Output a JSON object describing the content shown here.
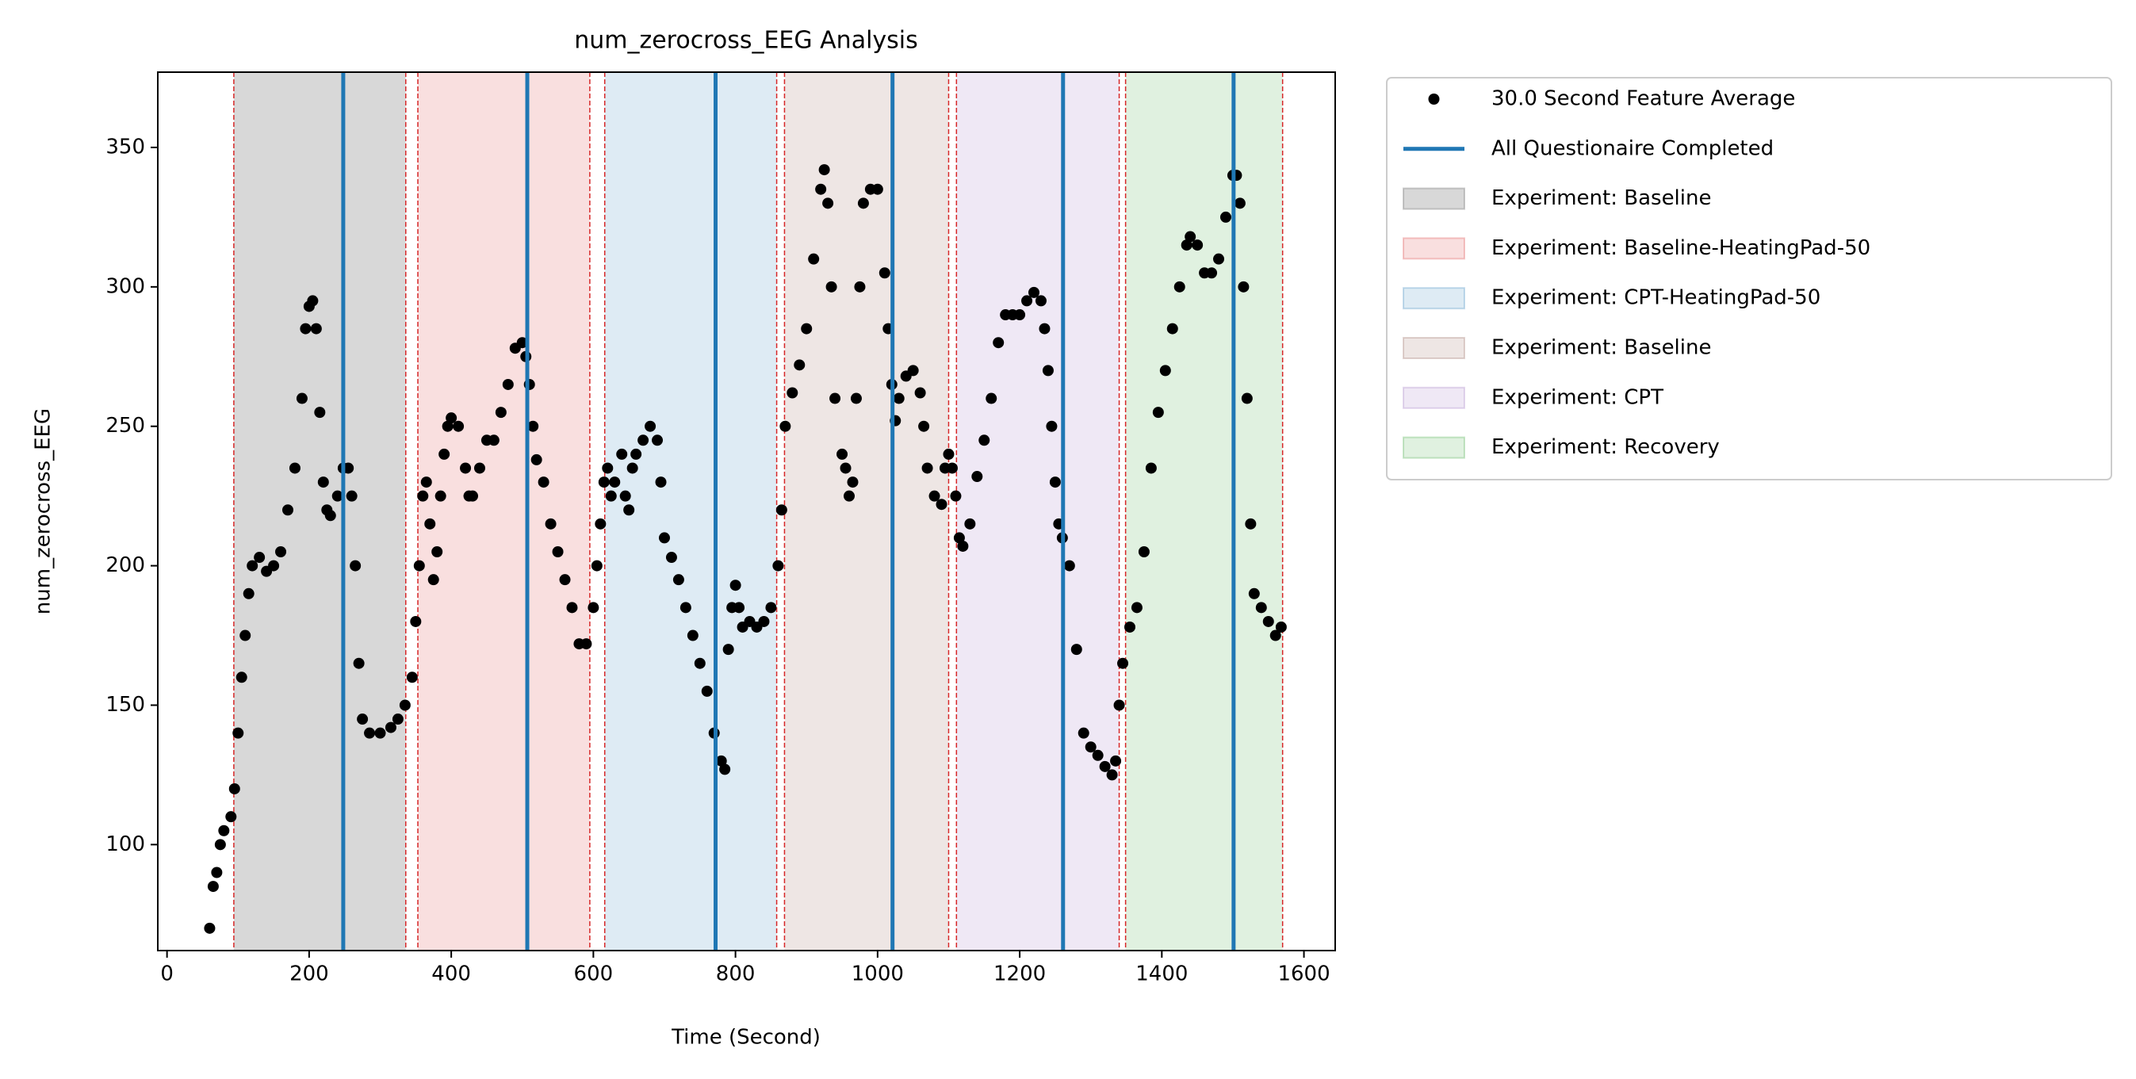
{
  "chart_data": {
    "type": "scatter",
    "title": "num_zerocross_EEG Analysis",
    "xlabel": "Time (Second)",
    "ylabel": "num_zerocross_EEG",
    "xlim": [
      -13,
      1644
    ],
    "ylim": [
      62,
      377
    ],
    "xticks": [
      0,
      200,
      400,
      600,
      800,
      1000,
      1200,
      1400,
      1600
    ],
    "yticks": [
      100,
      150,
      200,
      250,
      300,
      350
    ],
    "x": [
      60,
      65,
      70,
      75,
      80,
      90,
      95,
      100,
      105,
      110,
      115,
      120,
      130,
      140,
      150,
      160,
      170,
      180,
      190,
      195,
      200,
      205,
      210,
      215,
      220,
      225,
      230,
      240,
      248,
      255,
      260,
      265,
      270,
      275,
      285,
      300,
      315,
      325,
      335,
      345,
      350,
      355,
      360,
      365,
      370,
      375,
      380,
      385,
      390,
      395,
      400,
      410,
      420,
      425,
      430,
      440,
      450,
      460,
      470,
      480,
      490,
      500,
      505,
      510,
      515,
      520,
      530,
      540,
      550,
      560,
      570,
      580,
      590,
      600,
      605,
      610,
      615,
      620,
      625,
      630,
      640,
      645,
      650,
      655,
      660,
      670,
      680,
      690,
      695,
      700,
      710,
      720,
      730,
      740,
      750,
      760,
      770,
      780,
      785,
      790,
      795,
      800,
      805,
      810,
      820,
      830,
      840,
      850,
      860,
      865,
      870,
      880,
      890,
      900,
      910,
      920,
      925,
      930,
      935,
      940,
      950,
      955,
      960,
      965,
      970,
      975,
      980,
      990,
      1000,
      1010,
      1015,
      1020,
      1025,
      1030,
      1040,
      1050,
      1060,
      1065,
      1070,
      1080,
      1090,
      1095,
      1100,
      1105,
      1110,
      1115,
      1120,
      1130,
      1140,
      1150,
      1160,
      1170,
      1180,
      1190,
      1200,
      1210,
      1220,
      1230,
      1235,
      1240,
      1245,
      1250,
      1255,
      1260,
      1270,
      1280,
      1290,
      1300,
      1310,
      1320,
      1330,
      1335,
      1340,
      1345,
      1355,
      1365,
      1375,
      1385,
      1395,
      1405,
      1415,
      1425,
      1435,
      1440,
      1450,
      1460,
      1470,
      1480,
      1490,
      1500,
      1505,
      1510,
      1515,
      1520,
      1525,
      1530,
      1540,
      1550,
      1560,
      1568
    ],
    "series": [
      {
        "name": "30.0 Second Feature Average",
        "color": "#000000",
        "values": [
          70,
          85,
          90,
          100,
          105,
          110,
          120,
          140,
          160,
          175,
          190,
          200,
          203,
          198,
          200,
          205,
          220,
          235,
          260,
          285,
          293,
          295,
          285,
          255,
          230,
          220,
          218,
          225,
          235,
          235,
          225,
          200,
          165,
          145,
          140,
          140,
          142,
          145,
          150,
          160,
          180,
          200,
          225,
          230,
          215,
          195,
          205,
          225,
          240,
          250,
          253,
          250,
          235,
          225,
          225,
          235,
          245,
          245,
          255,
          265,
          278,
          280,
          275,
          265,
          250,
          238,
          230,
          215,
          205,
          195,
          185,
          172,
          172,
          185,
          200,
          215,
          230,
          235,
          225,
          230,
          240,
          225,
          220,
          235,
          240,
          245,
          250,
          245,
          230,
          210,
          203,
          195,
          185,
          175,
          165,
          155,
          140,
          130,
          127,
          170,
          185,
          193,
          185,
          178,
          180,
          178,
          180,
          185,
          200,
          220,
          250,
          262,
          272,
          285,
          310,
          335,
          342,
          330,
          300,
          260,
          240,
          235,
          225,
          230,
          260,
          300,
          330,
          335,
          335,
          305,
          285,
          265,
          252,
          260,
          268,
          270,
          262,
          250,
          235,
          225,
          222,
          235,
          240,
          235,
          225,
          210,
          207,
          215,
          232,
          245,
          260,
          280,
          290,
          290,
          290,
          295,
          298,
          295,
          285,
          270,
          250,
          230,
          215,
          210,
          200,
          170,
          140,
          135,
          132,
          128,
          125,
          130,
          150,
          165,
          178,
          185,
          205,
          235,
          255,
          270,
          285,
          300,
          315,
          318,
          315,
          305,
          305,
          310,
          325,
          340,
          340,
          330,
          300,
          260,
          215,
          190,
          185,
          180,
          175,
          178
        ]
      }
    ],
    "vlines": {
      "name": "All Questionaire Completed",
      "color": "#1f77b4",
      "x": [
        248,
        507,
        772,
        1021,
        1261,
        1501
      ]
    },
    "spans": [
      {
        "name": "Experiment: Baseline",
        "start": 94,
        "end": 336,
        "color": "#7f7f7f",
        "opacity": 0.3
      },
      {
        "name": "Experiment: Baseline-HeatingPad-50",
        "start": 353,
        "end": 595,
        "color": "#d62728",
        "opacity": 0.15
      },
      {
        "name": "Experiment: CPT-HeatingPad-50",
        "start": 616,
        "end": 858,
        "color": "#1f77b4",
        "opacity": 0.15
      },
      {
        "name": "Experiment: Baseline",
        "start": 869,
        "end": 1100,
        "color": "#8c564b",
        "opacity": 0.15
      },
      {
        "name": "Experiment: CPT",
        "start": 1111,
        "end": 1340,
        "color": "#9467bd",
        "opacity": 0.15
      },
      {
        "name": "Experiment: Recovery",
        "start": 1349,
        "end": 1570,
        "color": "#2ca02c",
        "opacity": 0.15
      }
    ],
    "span_edge_color": "#d62728"
  }
}
